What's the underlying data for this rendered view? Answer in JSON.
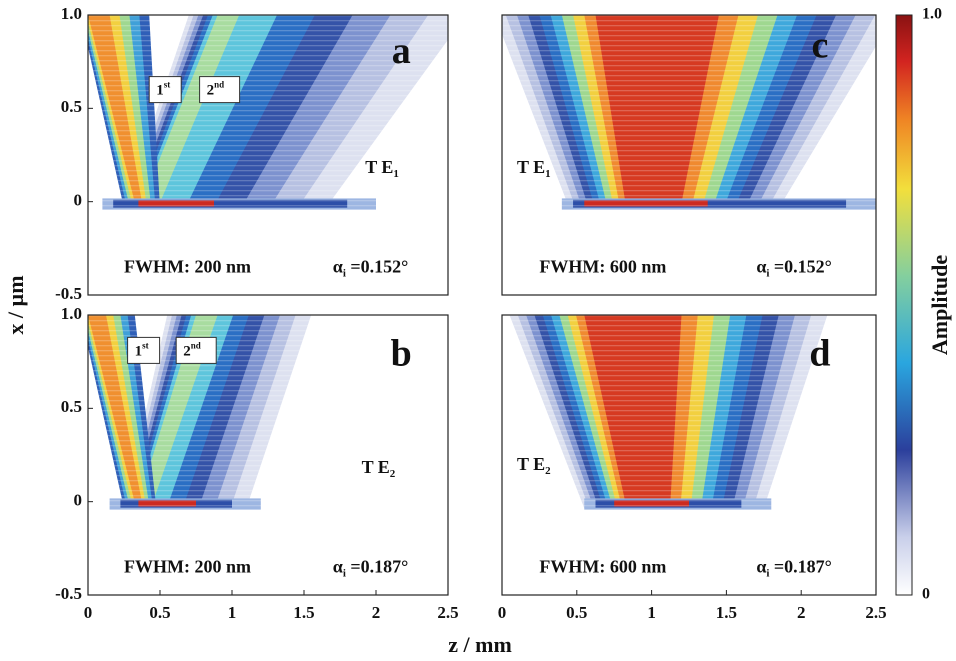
{
  "chart_data": {
    "type": "heatmap",
    "xlabel": "z / mm",
    "ylabel": "x / µm",
    "colorbar": {
      "label": "Amplitude",
      "lim": [
        0,
        1
      ],
      "ticks": [
        {
          "value": 1,
          "label": "1.0"
        },
        0
      ]
    },
    "panels": [
      {
        "label": "a",
        "mode": "T E",
        "mode_sub": "1",
        "fwhm": "FWHM: 200 nm",
        "angle_symbol": "α",
        "angle_sub": "i",
        "angle": " =0.152°",
        "annotations": [
          {
            "text": "1",
            "sup": "st"
          },
          {
            "text": "2",
            "sup": "nd"
          }
        ],
        "xlim": [
          0,
          2.5
        ],
        "ylim": [
          -0.5,
          1
        ],
        "yticks": [
          {
            "value": 1,
            "label": "1.0"
          },
          0.5,
          0,
          -0.5
        ]
      },
      {
        "label": "c",
        "mode": "T E",
        "mode_sub": "1",
        "fwhm": "FWHM: 600 nm",
        "angle_symbol": "α",
        "angle_sub": "i",
        "angle": " =0.152°",
        "xlim": [
          0,
          2.5
        ],
        "ylim": [
          -0.5,
          1
        ]
      },
      {
        "label": "b",
        "mode": "T E",
        "mode_sub": "2",
        "fwhm": "FWHM: 200 nm",
        "angle_symbol": "α",
        "angle_sub": "i",
        "angle": " =0.187°",
        "annotations": [
          {
            "text": "1",
            "sup": "st"
          },
          {
            "text": "2",
            "sup": "nd"
          }
        ],
        "xlim": [
          0,
          2.5
        ],
        "ylim": [
          -0.5,
          1
        ],
        "xticks": [
          0,
          0.5,
          1,
          1.5,
          2,
          2.5
        ],
        "yticks": [
          {
            "value": 1,
            "label": "1.0"
          },
          0.5,
          0,
          -0.5
        ]
      },
      {
        "label": "d",
        "mode": "T E",
        "mode_sub": "2",
        "fwhm": "FWHM: 600 nm",
        "angle_symbol": "α",
        "angle_sub": "i",
        "angle": " =0.187°",
        "xlim": [
          0,
          2.5
        ],
        "ylim": [
          -0.5,
          1
        ],
        "xticks": [
          0,
          0.5,
          1,
          1.5,
          2,
          2.5
        ]
      }
    ]
  }
}
